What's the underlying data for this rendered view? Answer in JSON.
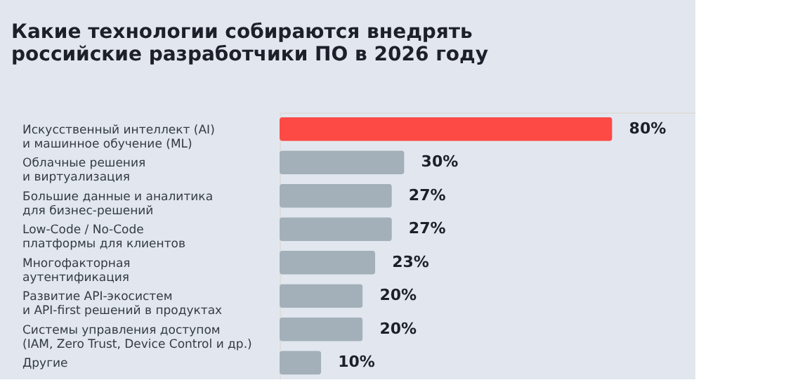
{
  "chart_data": {
    "type": "bar",
    "orientation": "horizontal",
    "title": "Какие технологии собираются внедрять\nроссийские разработчики ПО в 2026 году",
    "categories": [
      "Искусственный интеллект (AI)\nи машинное обучение (ML)",
      "Облачные решения\nи виртуализация",
      "Большие данные и аналитика\nдля бизнес-решений",
      "Low-Code / No-Code\nплатформы для клиентов",
      "Многофакторная\nаутентификация",
      "Развитие API-экосистем\nи API-first решений в продуктах",
      "Системы управления доступом\n(IAM, Zero Trust, Device Control и др.)",
      "Другие"
    ],
    "values": [
      80,
      30,
      27,
      27,
      23,
      20,
      20,
      10
    ],
    "value_labels": [
      "80%",
      "30%",
      "27%",
      "27%",
      "23%",
      "20%",
      "20%",
      "10%"
    ],
    "colors": [
      "#fd4a45",
      "#a3b0b9",
      "#a3b0b9",
      "#a3b0b9",
      "#a3b0b9",
      "#a3b0b9",
      "#a3b0b9",
      "#a3b0b9"
    ]
  }
}
